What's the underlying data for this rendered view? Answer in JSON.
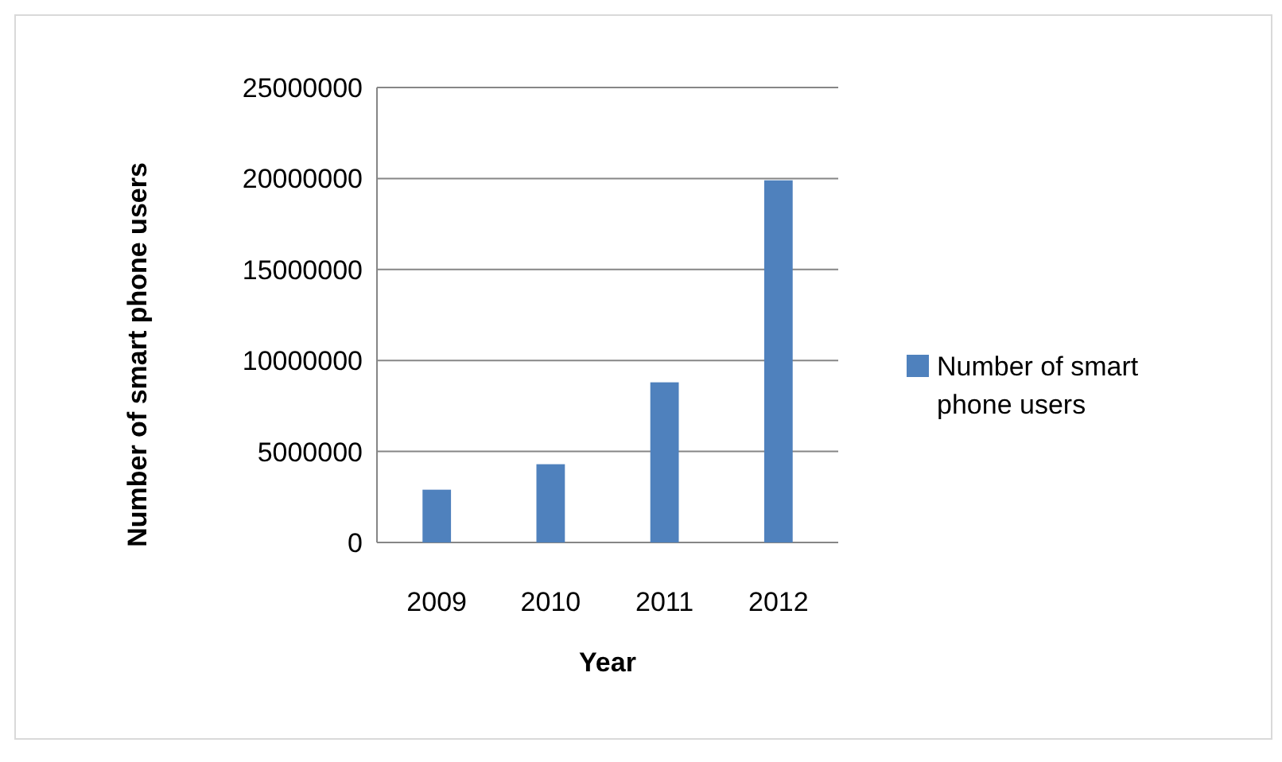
{
  "chart_data": {
    "type": "bar",
    "xlabel": "Year",
    "ylabel": "Number of smart phone users",
    "categories": [
      "2009",
      "2010",
      "2011",
      "2012"
    ],
    "series": [
      {
        "name": "Number of smart phone users",
        "color": "#4f81bd",
        "values": [
          2900000,
          4300000,
          8800000,
          19900000
        ]
      }
    ],
    "ylim": [
      0,
      25000000
    ],
    "yticks": [
      0,
      5000000,
      10000000,
      15000000,
      20000000,
      25000000
    ],
    "grid": "y",
    "legend": "right"
  }
}
